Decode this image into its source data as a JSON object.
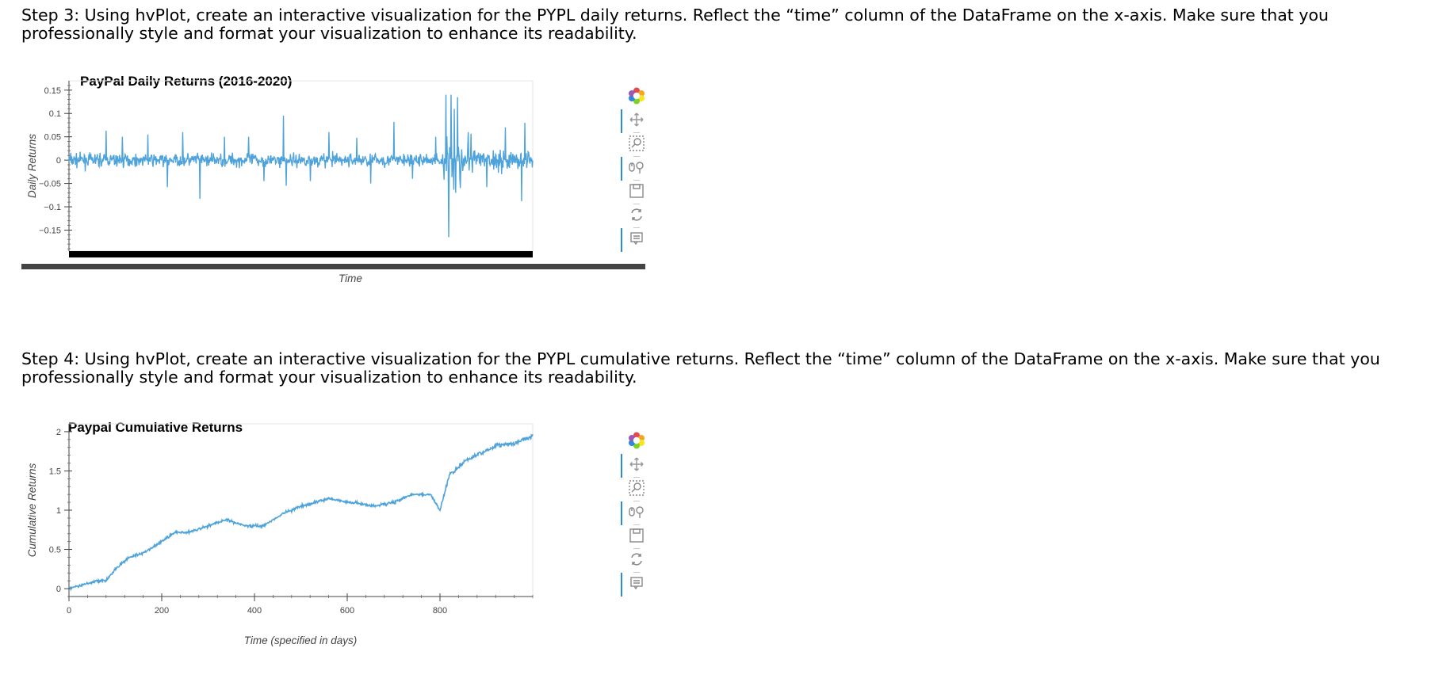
{
  "step3": {
    "text": "Step 3: Using hvPlot, create an interactive visualization for the PYPL daily returns. Reflect the “time” column of the DataFrame on the x-axis. Make sure that you professionally style and format your visualization to enhance its readability."
  },
  "step4": {
    "text": "Step 4: Using hvPlot, create an interactive visualization for the PYPL cumulative returns. Reflect the “time” column of the DataFrame on the x-axis. Make sure that you professionally style and format your visualization to enhance its readability."
  },
  "toolbar": {
    "icons": [
      "bokeh-logo-icon",
      "pan-icon",
      "box-zoom-icon",
      "wheel-zoom-icon",
      "save-icon",
      "reset-icon",
      "hover-icon"
    ]
  },
  "colors": {
    "line": "#4fa3db",
    "toolbar_active": "#2b8cd8"
  },
  "chart_data": [
    {
      "type": "line",
      "title": "PayPal Daily Returns (2016-2020)",
      "xlabel": "Time",
      "ylabel": "Daily Returns",
      "ylim": [
        -0.195,
        0.17
      ],
      "yticks": [
        0.15,
        0.1,
        0.05,
        0,
        -0.05,
        -0.1,
        -0.15
      ],
      "ytick_labels": [
        "0.15",
        "0.1",
        "0.05",
        "0",
        "−0.05",
        "−0.1",
        "−0.15"
      ],
      "x_axis": "date ticks rendered overlapped (black band)",
      "n_points": 1000,
      "spikes": [
        {
          "x": 80,
          "y": 0.063
        },
        {
          "x": 115,
          "y": 0.05
        },
        {
          "x": 170,
          "y": 0.055
        },
        {
          "x": 212,
          "y": -0.058
        },
        {
          "x": 245,
          "y": 0.06
        },
        {
          "x": 282,
          "y": -0.083
        },
        {
          "x": 335,
          "y": 0.05
        },
        {
          "x": 387,
          "y": 0.05
        },
        {
          "x": 420,
          "y": -0.045
        },
        {
          "x": 462,
          "y": 0.095
        },
        {
          "x": 468,
          "y": -0.055
        },
        {
          "x": 520,
          "y": -0.045
        },
        {
          "x": 560,
          "y": 0.06
        },
        {
          "x": 620,
          "y": 0.048
        },
        {
          "x": 650,
          "y": -0.05
        },
        {
          "x": 700,
          "y": 0.082
        },
        {
          "x": 740,
          "y": -0.04
        },
        {
          "x": 790,
          "y": 0.05
        },
        {
          "x": 812,
          "y": 0.14
        },
        {
          "x": 818,
          "y": -0.165
        },
        {
          "x": 823,
          "y": 0.14
        },
        {
          "x": 830,
          "y": 0.11
        },
        {
          "x": 833,
          "y": -0.07
        },
        {
          "x": 837,
          "y": 0.135
        },
        {
          "x": 843,
          "y": -0.06
        },
        {
          "x": 860,
          "y": 0.06
        },
        {
          "x": 900,
          "y": -0.058
        },
        {
          "x": 940,
          "y": 0.07
        },
        {
          "x": 975,
          "y": -0.088
        },
        {
          "x": 982,
          "y": 0.08
        }
      ]
    },
    {
      "type": "line",
      "title": "Paypal Cumulative Returns",
      "xlabel": "Time (specified in days)",
      "ylabel": "Cumulative Returns",
      "xlim": [
        0,
        1000
      ],
      "ylim": [
        -0.1,
        2.1
      ],
      "xticks": [
        0,
        200,
        400,
        600,
        800
      ],
      "yticks": [
        0,
        0.5,
        1,
        1.5,
        2
      ],
      "ytick_labels": [
        "0",
        "0.5",
        "1",
        "1.5",
        "2"
      ],
      "x": [
        0,
        30,
        60,
        80,
        100,
        130,
        160,
        200,
        230,
        260,
        300,
        340,
        380,
        420,
        460,
        500,
        560,
        600,
        630,
        660,
        700,
        740,
        780,
        800,
        820,
        840,
        860,
        880,
        920,
        960,
        1000
      ],
      "y": [
        0.0,
        0.05,
        0.1,
        0.1,
        0.25,
        0.4,
        0.45,
        0.6,
        0.72,
        0.72,
        0.8,
        0.88,
        0.8,
        0.8,
        0.95,
        1.05,
        1.15,
        1.1,
        1.08,
        1.05,
        1.1,
        1.2,
        1.2,
        1.0,
        1.45,
        1.55,
        1.65,
        1.7,
        1.82,
        1.85,
        1.95
      ]
    }
  ]
}
